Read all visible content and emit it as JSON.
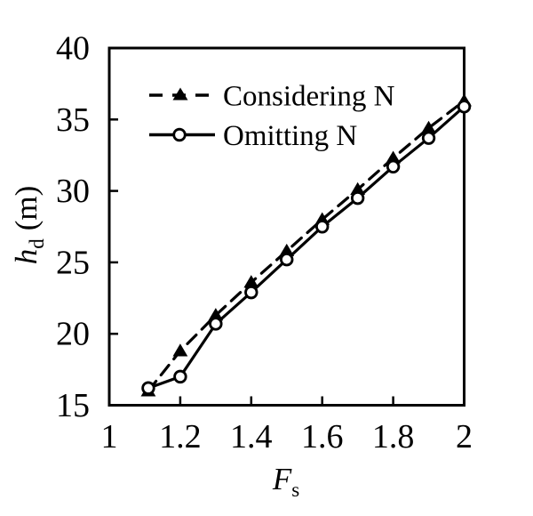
{
  "chart_data": {
    "type": "line",
    "title": "",
    "xlabel": {
      "symbol": "F",
      "subscript": "s",
      "unit": ""
    },
    "ylabel": {
      "symbol": "h",
      "subscript": "d",
      "unit": "(m)"
    },
    "xlim": [
      1,
      2
    ],
    "ylim": [
      15,
      40
    ],
    "grid": false,
    "x_tick_marks": [
      1.2,
      1.4,
      1.6,
      1.8
    ],
    "y_tick_marks": [
      20,
      25,
      30,
      35
    ],
    "x_tick_labels": [
      {
        "value": 1,
        "label": "1"
      },
      {
        "value": 1.2,
        "label": "1.2"
      },
      {
        "value": 1.4,
        "label": "1.4"
      },
      {
        "value": 1.6,
        "label": "1.6"
      },
      {
        "value": 1.8,
        "label": "1.8"
      },
      {
        "value": 2,
        "label": "2"
      }
    ],
    "y_tick_labels": [
      {
        "value": 15,
        "label": "15"
      },
      {
        "value": 20,
        "label": "20"
      },
      {
        "value": 25,
        "label": "25"
      },
      {
        "value": 30,
        "label": "30"
      },
      {
        "value": 35,
        "label": "35"
      },
      {
        "value": 40,
        "label": "40"
      }
    ],
    "series": [
      {
        "name": "Considering N",
        "line_style": "dashed",
        "marker": "filled-triangle",
        "color": "#000000",
        "points": [
          [
            1.11,
            16.0
          ],
          [
            1.2,
            18.8
          ],
          [
            1.3,
            21.3
          ],
          [
            1.4,
            23.6
          ],
          [
            1.5,
            25.8
          ],
          [
            1.6,
            28.0
          ],
          [
            1.7,
            30.1
          ],
          [
            1.8,
            32.3
          ],
          [
            1.9,
            34.4
          ],
          [
            2.0,
            36.3
          ]
        ]
      },
      {
        "name": "Omitting N",
        "line_style": "solid",
        "marker": "open-circle",
        "color": "#000000",
        "points": [
          [
            1.11,
            16.2
          ],
          [
            1.2,
            17.0
          ],
          [
            1.3,
            20.7
          ],
          [
            1.4,
            22.9
          ],
          [
            1.5,
            25.2
          ],
          [
            1.6,
            27.5
          ],
          [
            1.7,
            29.5
          ],
          [
            1.8,
            31.7
          ],
          [
            1.9,
            33.7
          ],
          [
            2.0,
            35.9
          ]
        ]
      }
    ],
    "legend": {
      "position": "upper-left-inside",
      "border": false,
      "entries": [
        "Considering N",
        "Omitting N"
      ]
    },
    "colors": {
      "foreground": "#000000",
      "background": "#ffffff"
    }
  }
}
